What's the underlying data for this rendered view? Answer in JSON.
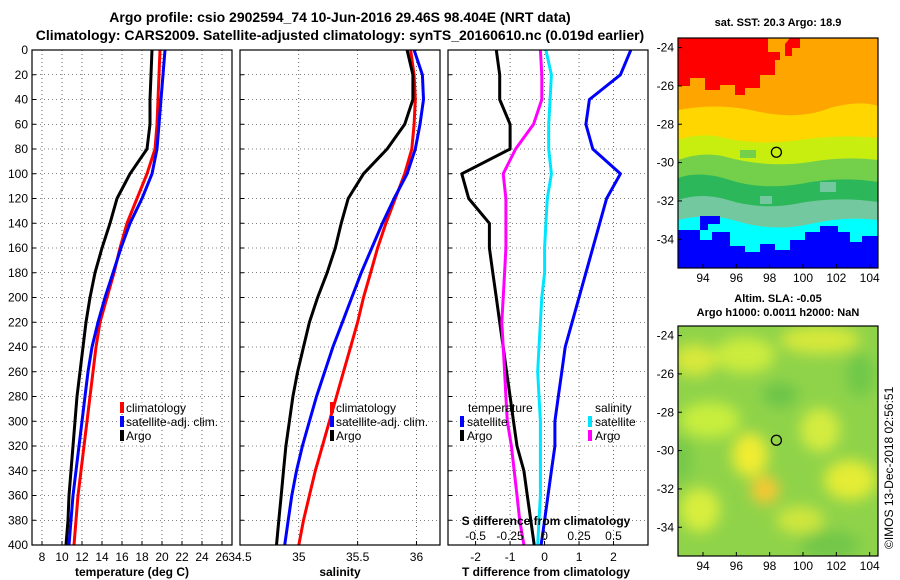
{
  "header": {
    "title_line1": "Argo profile: csio 2902594_74 10-Jun-2016 29.46S 98.404E (NRT data)",
    "title_line2": "Climatology: CARS2009. Satellite-adjusted climatology: synTS_20160610.nc (0.019d earlier)"
  },
  "colors": {
    "climatology": "#ff0000",
    "satellite": "#0000ff",
    "argo": "#000000",
    "satellite_salinity": "#00e5ff",
    "argo_salinity": "#ff00ff"
  },
  "depth_ticks": [
    "0",
    "20",
    "40",
    "60",
    "80",
    "100",
    "120",
    "140",
    "160",
    "180",
    "200",
    "220",
    "240",
    "260",
    "280",
    "300",
    "320",
    "340",
    "360",
    "380",
    "400"
  ],
  "chart_data": [
    {
      "type": "line",
      "id": "temperature",
      "xlabel": "temperature (deg C)",
      "ylabel": "",
      "xlim": [
        7,
        27
      ],
      "ylim": [
        400,
        0
      ],
      "xticks": [
        "8",
        "10",
        "12",
        "14",
        "16",
        "18",
        "20",
        "22",
        "24",
        "26"
      ],
      "legend": [
        "climatology",
        "satellite-adj. clim.",
        "Argo"
      ],
      "series": [
        {
          "name": "climatology",
          "x": [
            19.8,
            19.7,
            19.6,
            19.5,
            19.3,
            18.5,
            17.5,
            16.5,
            15.8,
            15.2,
            14.5,
            13.8,
            13.4,
            13.1,
            12.8,
            12.5,
            12.2,
            11.9,
            11.6,
            11.4,
            11.2
          ],
          "y": [
            0,
            20,
            40,
            60,
            80,
            100,
            120,
            140,
            160,
            180,
            200,
            220,
            240,
            260,
            280,
            300,
            320,
            340,
            360,
            380,
            400
          ]
        },
        {
          "name": "satellite-adj. clim.",
          "x": [
            20.3,
            20.1,
            19.9,
            19.7,
            19.5,
            19.0,
            18.0,
            16.8,
            15.9,
            15.1,
            14.3,
            13.6,
            13.0,
            12.6,
            12.3,
            12.0,
            11.7,
            11.4,
            11.1,
            10.9,
            10.7
          ],
          "y": [
            0,
            20,
            40,
            60,
            80,
            100,
            120,
            140,
            160,
            180,
            200,
            220,
            240,
            260,
            280,
            300,
            320,
            340,
            360,
            380,
            400
          ]
        },
        {
          "name": "Argo",
          "x": [
            19.0,
            18.9,
            18.8,
            18.8,
            18.5,
            16.8,
            15.5,
            14.8,
            14.0,
            13.3,
            12.8,
            12.4,
            12.1,
            11.8,
            11.5,
            11.3,
            11.1,
            10.9,
            10.7,
            10.6,
            10.4
          ],
          "y": [
            0,
            20,
            40,
            60,
            80,
            100,
            120,
            140,
            160,
            180,
            200,
            220,
            240,
            260,
            280,
            300,
            320,
            340,
            360,
            380,
            400
          ]
        }
      ]
    },
    {
      "type": "line",
      "id": "salinity",
      "xlabel": "salinity",
      "ylabel": "",
      "xlim": [
        34.5,
        36.2
      ],
      "ylim": [
        400,
        0
      ],
      "xticks": [
        "34.5",
        "35",
        "35.5",
        "36"
      ],
      "legend": [
        "climatology",
        "satellite-adj. clim.",
        "Argo"
      ],
      "series": [
        {
          "name": "climatology",
          "x": [
            35.95,
            35.98,
            35.99,
            35.98,
            35.96,
            35.9,
            35.82,
            35.74,
            35.67,
            35.61,
            35.55,
            35.5,
            35.44,
            35.38,
            35.32,
            35.26,
            35.2,
            35.14,
            35.09,
            35.04,
            35.0
          ],
          "y": [
            0,
            20,
            40,
            60,
            80,
            100,
            120,
            140,
            160,
            180,
            200,
            220,
            240,
            260,
            280,
            300,
            320,
            340,
            360,
            380,
            400
          ]
        },
        {
          "name": "satellite-adj. clim.",
          "x": [
            35.98,
            36.05,
            36.06,
            36.03,
            35.99,
            35.92,
            35.81,
            35.71,
            35.62,
            35.53,
            35.45,
            35.37,
            35.29,
            35.22,
            35.15,
            35.09,
            35.03,
            34.98,
            34.94,
            34.91,
            34.88
          ],
          "y": [
            0,
            20,
            40,
            60,
            80,
            100,
            120,
            140,
            160,
            180,
            200,
            220,
            240,
            260,
            280,
            300,
            320,
            340,
            360,
            380,
            400
          ]
        },
        {
          "name": "Argo",
          "x": [
            35.92,
            35.97,
            35.97,
            35.9,
            35.75,
            35.55,
            35.42,
            35.36,
            35.31,
            35.24,
            35.16,
            35.09,
            35.04,
            34.99,
            34.95,
            34.92,
            34.89,
            34.87,
            34.85,
            34.83,
            34.81
          ],
          "y": [
            0,
            20,
            40,
            60,
            80,
            100,
            120,
            140,
            160,
            180,
            200,
            220,
            240,
            260,
            280,
            300,
            320,
            340,
            360,
            380,
            400
          ]
        }
      ]
    },
    {
      "type": "line",
      "id": "differences",
      "xlabel": "T difference from climatology",
      "xlabel_top": "S difference from climatology",
      "xlim": [
        -2.8,
        3.0
      ],
      "ylim": [
        400,
        0
      ],
      "xticks": [
        "-2",
        "-1",
        "0",
        "1",
        "2"
      ],
      "xticks_top": [
        "-0.5",
        "-0.25",
        "0",
        "0.25",
        "0.5"
      ],
      "legend_temperature_title": "temperature",
      "legend_salinity_title": "salinity",
      "legend_satellite": "satellite",
      "legend_argo": "Argo",
      "series": [
        {
          "name": "temperature satellite",
          "x": [
            2.5,
            2.2,
            1.3,
            1.2,
            1.4,
            2.2,
            1.8,
            1.6,
            1.4,
            1.2,
            1.0,
            0.8,
            0.6,
            0.5,
            0.4,
            0.3,
            0.3,
            0.2,
            0.1,
            0.0,
            -0.1
          ],
          "y": [
            0,
            20,
            40,
            60,
            80,
            100,
            120,
            140,
            160,
            180,
            200,
            220,
            240,
            260,
            280,
            300,
            320,
            340,
            360,
            380,
            400
          ]
        },
        {
          "name": "temperature Argo",
          "x": [
            -1.4,
            -1.3,
            -1.3,
            -1.0,
            -1.0,
            -2.4,
            -2.2,
            -1.6,
            -1.6,
            -1.5,
            -1.4,
            -1.3,
            -1.2,
            -1.1,
            -1.0,
            -0.9,
            -0.8,
            -0.6,
            -0.5,
            -0.4,
            -0.3
          ],
          "y": [
            0,
            20,
            40,
            60,
            80,
            100,
            120,
            140,
            160,
            180,
            200,
            220,
            240,
            260,
            280,
            300,
            320,
            340,
            360,
            380,
            400
          ]
        },
        {
          "name": "salinity satellite",
          "x": [
            0.01,
            0.05,
            0.04,
            0.03,
            0.03,
            0.05,
            0.02,
            0.01,
            0.0,
            0.0,
            -0.02,
            -0.03,
            -0.04,
            -0.05,
            -0.04,
            -0.03,
            -0.03,
            -0.03,
            -0.03,
            -0.04,
            -0.05
          ],
          "y": [
            0,
            20,
            40,
            60,
            80,
            100,
            120,
            140,
            160,
            180,
            200,
            220,
            240,
            260,
            280,
            300,
            320,
            340,
            360,
            380,
            400
          ]
        },
        {
          "name": "salinity Argo",
          "x": [
            -0.03,
            -0.02,
            -0.02,
            -0.08,
            -0.21,
            -0.3,
            -0.28,
            -0.28,
            -0.28,
            -0.29,
            -0.3,
            -0.31,
            -0.3,
            -0.29,
            -0.28,
            -0.27,
            -0.24,
            -0.22,
            -0.2,
            -0.18,
            -0.15
          ],
          "y": [
            0,
            20,
            40,
            60,
            80,
            100,
            120,
            140,
            160,
            180,
            200,
            220,
            240,
            260,
            280,
            300,
            320,
            340,
            360,
            380,
            400
          ]
        }
      ]
    },
    {
      "type": "heatmap",
      "id": "sst_map",
      "title": "sat. SST: 20.3 Argo: 18.9",
      "xticks": [
        "94",
        "96",
        "98",
        "100",
        "102",
        "104"
      ],
      "yticks": [
        "-24",
        "-26",
        "-28",
        "-30",
        "-32",
        "-34"
      ],
      "xlim": [
        92.5,
        104.5
      ],
      "ylim": [
        -35.5,
        -23.5
      ],
      "argo_position": {
        "lon": 98.404,
        "lat": -29.46
      }
    },
    {
      "type": "heatmap",
      "id": "sla_map",
      "title_line1": "Altim. SLA: -0.05",
      "title_line2": "Argo h1000: 0.0011 h2000: NaN",
      "xticks": [
        "94",
        "96",
        "98",
        "100",
        "102",
        "104"
      ],
      "yticks": [
        "-24",
        "-26",
        "-28",
        "-30",
        "-32",
        "-34"
      ],
      "xlim": [
        92.5,
        104.5
      ],
      "ylim": [
        -35.5,
        -23.5
      ],
      "argo_position": {
        "lon": 98.404,
        "lat": -29.46
      }
    }
  ],
  "credit": "©IMOS 13-Dec-2018 02:56:51"
}
